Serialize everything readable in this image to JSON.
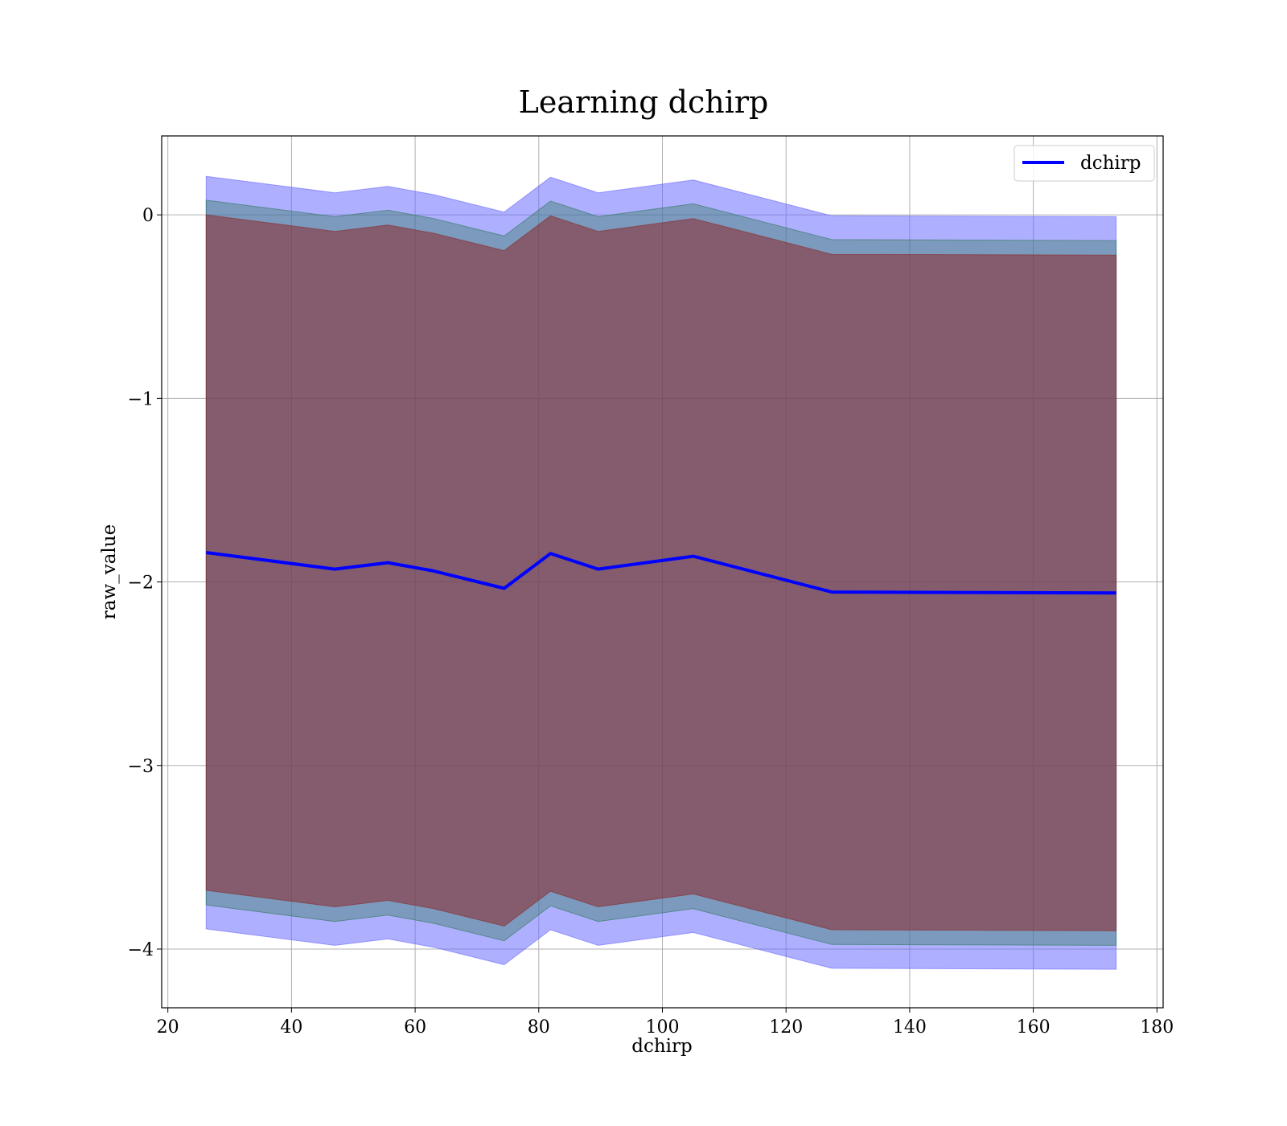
{
  "chart_data": {
    "type": "area",
    "title": "Learning dchirp",
    "xlabel": "dchirp",
    "ylabel": "raw_value",
    "xlim": [
      19,
      181
    ],
    "ylim": [
      -4.32,
      0.43
    ],
    "x_ticks": [
      20,
      40,
      60,
      80,
      100,
      120,
      140,
      160,
      180
    ],
    "y_ticks": [
      0,
      -1,
      -2,
      -3,
      -4
    ],
    "x_tick_labels": [
      "20",
      "40",
      "60",
      "80",
      "100",
      "120",
      "140",
      "160",
      "180"
    ],
    "y_tick_labels": [
      "0",
      "−1",
      "−2",
      "−3",
      "−4"
    ],
    "grid": true,
    "legend": {
      "placement": "upper-right",
      "entries": [
        "dchirp"
      ]
    },
    "x": [
      26.2,
      47.0,
      55.6,
      63.0,
      74.4,
      81.9,
      89.6,
      105.0,
      127.4,
      173.4
    ],
    "series": [
      {
        "name": "dchirp",
        "type": "line",
        "color": "#0000ff",
        "values": [
          -1.84,
          -1.93,
          -1.895,
          -1.94,
          -2.035,
          -1.845,
          -1.93,
          -1.86,
          -2.055,
          -2.06
        ]
      }
    ],
    "bands": [
      {
        "color": "#6666ff",
        "opacity": 0.52,
        "offset": 2.05
      },
      {
        "color": "#2b7a55",
        "opacity": 0.38,
        "offset": 1.92
      },
      {
        "color": "#8b2a2a",
        "opacity": 0.55,
        "offset": 1.84
      }
    ]
  }
}
